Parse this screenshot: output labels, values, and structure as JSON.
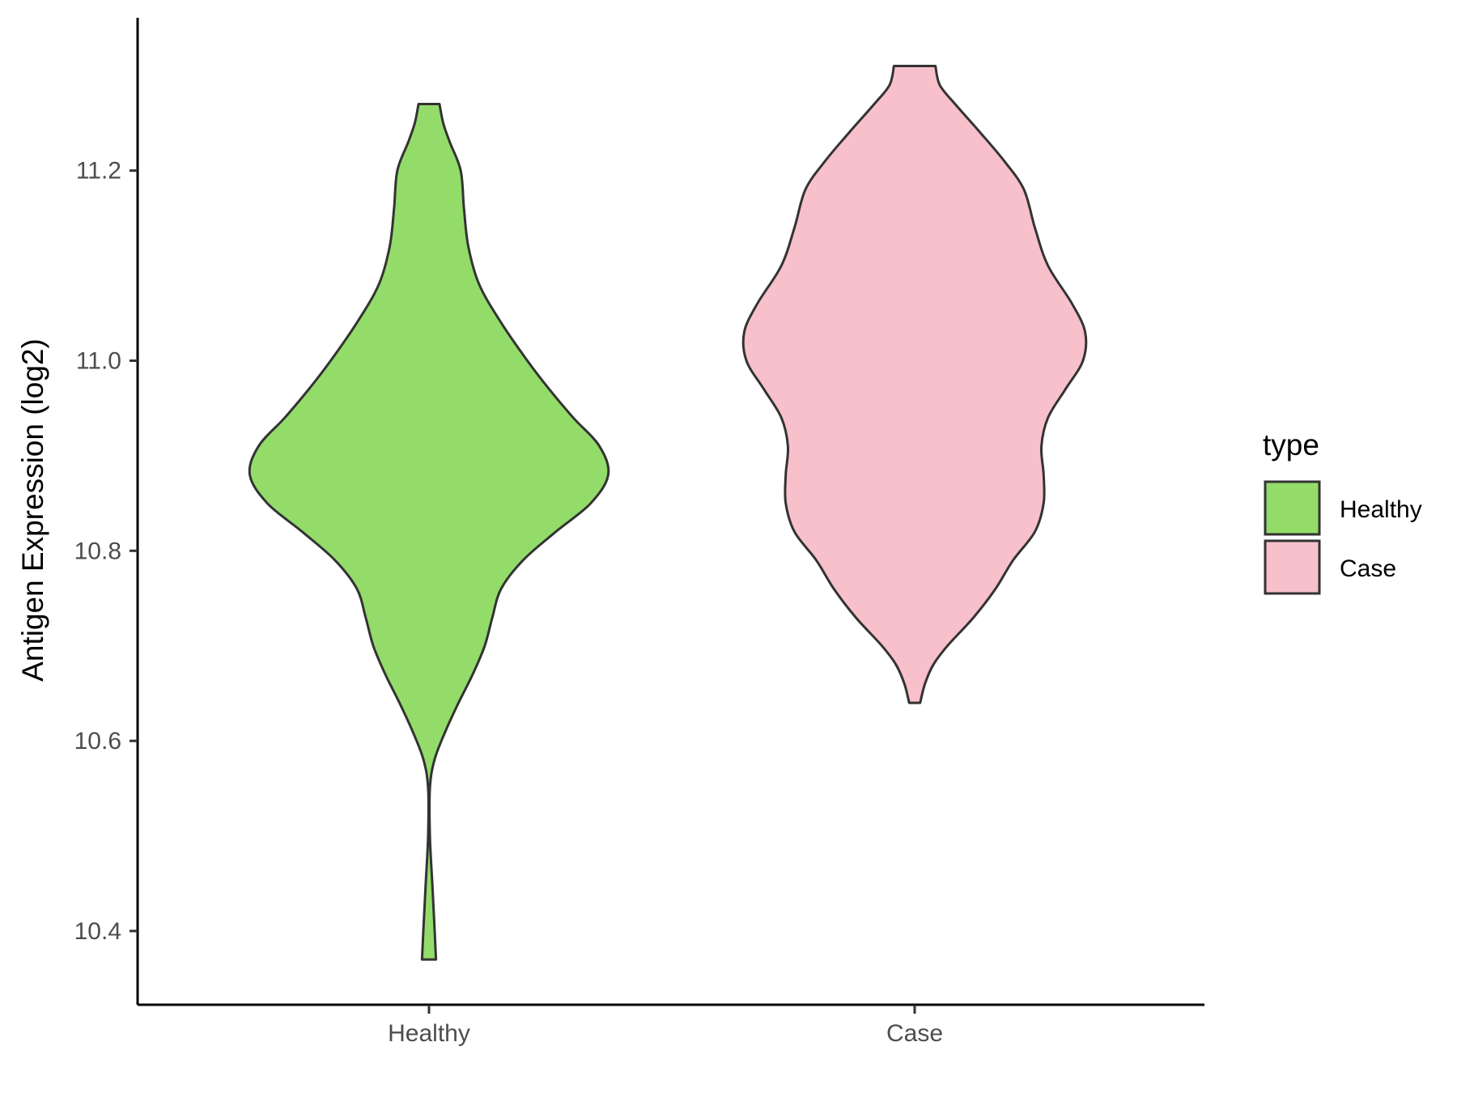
{
  "chart_data": {
    "type": "violin",
    "ylabel": "Antigen Expression (log2)",
    "xlabel": "",
    "categories": [
      "Healthy",
      "Case"
    ],
    "ylim": [
      10.33,
      11.37
    ],
    "yticks": [
      10.4,
      10.6,
      10.8,
      11.0,
      11.2
    ],
    "ytick_labels": [
      "10.4",
      "10.6",
      "10.8",
      "11.0",
      "11.2"
    ],
    "grid": false,
    "legend": {
      "title": "type",
      "placement": "right",
      "entries": [
        {
          "label": "Healthy",
          "color": "#93dc6a"
        },
        {
          "label": "Case",
          "color": "#f7c0cb"
        }
      ]
    },
    "series": [
      {
        "name": "Healthy",
        "color": "#93dc6a",
        "y_min": 10.37,
        "y_max": 11.27,
        "density": [
          [
            10.37,
            0.032
          ],
          [
            10.4,
            0.026
          ],
          [
            10.45,
            0.015
          ],
          [
            10.5,
            0.004
          ],
          [
            10.55,
            0.004
          ],
          [
            10.58,
            0.025
          ],
          [
            10.61,
            0.075
          ],
          [
            10.64,
            0.135
          ],
          [
            10.67,
            0.2
          ],
          [
            10.7,
            0.255
          ],
          [
            10.73,
            0.29
          ],
          [
            10.76,
            0.33
          ],
          [
            10.79,
            0.43
          ],
          [
            10.82,
            0.58
          ],
          [
            10.85,
            0.74
          ],
          [
            10.88,
            0.82
          ],
          [
            10.91,
            0.78
          ],
          [
            10.94,
            0.66
          ],
          [
            10.97,
            0.55
          ],
          [
            11.0,
            0.45
          ],
          [
            11.04,
            0.33
          ],
          [
            11.08,
            0.23
          ],
          [
            11.12,
            0.18
          ],
          [
            11.16,
            0.16
          ],
          [
            11.2,
            0.145
          ],
          [
            11.23,
            0.095
          ],
          [
            11.25,
            0.065
          ],
          [
            11.27,
            0.048
          ]
        ]
      },
      {
        "name": "Case",
        "color": "#f7c0cb",
        "y_min": 10.64,
        "y_max": 11.31,
        "density": [
          [
            10.64,
            0.025
          ],
          [
            10.66,
            0.047
          ],
          [
            10.68,
            0.085
          ],
          [
            10.7,
            0.15
          ],
          [
            10.73,
            0.27
          ],
          [
            10.76,
            0.37
          ],
          [
            10.79,
            0.45
          ],
          [
            10.82,
            0.55
          ],
          [
            10.85,
            0.59
          ],
          [
            10.88,
            0.59
          ],
          [
            10.91,
            0.58
          ],
          [
            10.94,
            0.61
          ],
          [
            10.97,
            0.69
          ],
          [
            11.0,
            0.77
          ],
          [
            11.03,
            0.78
          ],
          [
            11.06,
            0.72
          ],
          [
            11.1,
            0.61
          ],
          [
            11.14,
            0.55
          ],
          [
            11.18,
            0.5
          ],
          [
            11.21,
            0.41
          ],
          [
            11.24,
            0.3
          ],
          [
            11.27,
            0.185
          ],
          [
            11.29,
            0.115
          ],
          [
            11.31,
            0.095
          ]
        ]
      }
    ]
  }
}
